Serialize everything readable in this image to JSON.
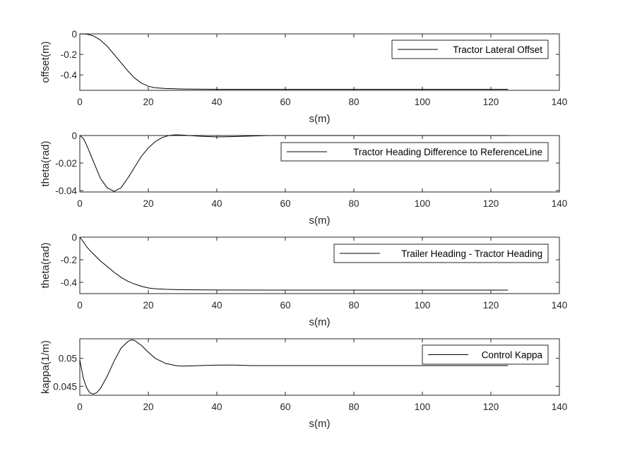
{
  "chart_data": [
    {
      "type": "line",
      "xlabel": "s(m)",
      "ylabel": "offset(m)",
      "xlim": [
        0,
        140
      ],
      "ylim": [
        -0.55,
        0
      ],
      "xticks": [
        0,
        20,
        40,
        60,
        80,
        100,
        120,
        140
      ],
      "yticks": [
        0,
        -0.2,
        -0.4
      ],
      "ytick_labels": [
        "0",
        "-0.2",
        "-0.4"
      ],
      "grid": false,
      "legend": {
        "entries": [
          "Tractor Lateral Offset"
        ],
        "placement": "top-right"
      },
      "series": [
        {
          "name": "Tractor Lateral Offset",
          "color": "#000000",
          "points": [
            [
              0,
              0
            ],
            [
              2,
              -0.002
            ],
            [
              4,
              -0.02
            ],
            [
              6,
              -0.06
            ],
            [
              8,
              -0.12
            ],
            [
              10,
              -0.2
            ],
            [
              12,
              -0.28
            ],
            [
              14,
              -0.36
            ],
            [
              16,
              -0.43
            ],
            [
              18,
              -0.48
            ],
            [
              20,
              -0.51
            ],
            [
              22,
              -0.525
            ],
            [
              25,
              -0.532
            ],
            [
              30,
              -0.537
            ],
            [
              40,
              -0.54
            ],
            [
              60,
              -0.54
            ],
            [
              80,
              -0.54
            ],
            [
              100,
              -0.54
            ],
            [
              125,
              -0.54
            ]
          ]
        }
      ]
    },
    {
      "type": "line",
      "xlabel": "s(m)",
      "ylabel": "theta(rad)",
      "xlim": [
        0,
        140
      ],
      "ylim": [
        -0.041,
        0
      ],
      "xticks": [
        0,
        20,
        40,
        60,
        80,
        100,
        120,
        140
      ],
      "yticks": [
        0,
        -0.02,
        -0.04
      ],
      "ytick_labels": [
        "0",
        "-0.02",
        "-0.04"
      ],
      "grid": false,
      "legend": {
        "entries": [
          "Tractor Heading Difference to ReferenceLine"
        ],
        "placement": "top-right"
      },
      "series": [
        {
          "name": "Tractor Heading Difference to ReferenceLine",
          "color": "#000000",
          "points": [
            [
              0,
              0
            ],
            [
              1,
              -0.002
            ],
            [
              2,
              -0.007
            ],
            [
              4,
              -0.019
            ],
            [
              6,
              -0.031
            ],
            [
              8,
              -0.038
            ],
            [
              10,
              -0.0405
            ],
            [
              12,
              -0.038
            ],
            [
              14,
              -0.031
            ],
            [
              16,
              -0.023
            ],
            [
              18,
              -0.015
            ],
            [
              20,
              -0.009
            ],
            [
              22,
              -0.0045
            ],
            [
              24,
              -0.0015
            ],
            [
              26,
              0
            ],
            [
              28,
              0.0005
            ],
            [
              30,
              0.0003
            ],
            [
              35,
              -0.0005
            ],
            [
              40,
              -0.001
            ],
            [
              45,
              -0.0008
            ],
            [
              50,
              -0.0004
            ],
            [
              55,
              0
            ],
            [
              60,
              0
            ],
            [
              80,
              0
            ],
            [
              100,
              0
            ],
            [
              125,
              0
            ]
          ]
        }
      ]
    },
    {
      "type": "line",
      "xlabel": "s(m)",
      "ylabel": "theta(rad)",
      "xlim": [
        0,
        140
      ],
      "ylim": [
        -0.5,
        0
      ],
      "xticks": [
        0,
        20,
        40,
        60,
        80,
        100,
        120,
        140
      ],
      "yticks": [
        0,
        -0.2,
        -0.4
      ],
      "ytick_labels": [
        "0",
        "-0.2",
        "-0.4"
      ],
      "grid": false,
      "legend": {
        "entries": [
          "Trailer Heading - Tractor Heading"
        ],
        "placement": "top-right"
      },
      "series": [
        {
          "name": "Trailer Heading - Tractor Heading",
          "color": "#000000",
          "points": [
            [
              0,
              0
            ],
            [
              1,
              -0.04
            ],
            [
              2,
              -0.085
            ],
            [
              3,
              -0.12
            ],
            [
              4,
              -0.15
            ],
            [
              6,
              -0.21
            ],
            [
              8,
              -0.26
            ],
            [
              10,
              -0.31
            ],
            [
              12,
              -0.355
            ],
            [
              14,
              -0.39
            ],
            [
              16,
              -0.415
            ],
            [
              18,
              -0.435
            ],
            [
              20,
              -0.45
            ],
            [
              22,
              -0.457
            ],
            [
              25,
              -0.462
            ],
            [
              30,
              -0.466
            ],
            [
              40,
              -0.468
            ],
            [
              60,
              -0.469
            ],
            [
              80,
              -0.469
            ],
            [
              100,
              -0.469
            ],
            [
              125,
              -0.469
            ]
          ]
        }
      ]
    },
    {
      "type": "line",
      "xlabel": "s(m)",
      "ylabel": "kappa(1/m)",
      "xlim": [
        0,
        140
      ],
      "ylim": [
        0.0434,
        0.0535
      ],
      "xticks": [
        0,
        20,
        40,
        60,
        80,
        100,
        120,
        140
      ],
      "yticks": [
        0.05,
        0.045
      ],
      "ytick_labels": [
        "0.05",
        "0.045"
      ],
      "grid": false,
      "legend": {
        "entries": [
          "Control Kappa"
        ],
        "placement": "top-right"
      },
      "series": [
        {
          "name": "Control Kappa",
          "color": "#000000",
          "points": [
            [
              0,
              0.0497
            ],
            [
              1,
              0.0465
            ],
            [
              2,
              0.0447
            ],
            [
              3,
              0.0438
            ],
            [
              4,
              0.0436
            ],
            [
              5,
              0.0439
            ],
            [
              6,
              0.0446
            ],
            [
              8,
              0.0468
            ],
            [
              10,
              0.0495
            ],
            [
              12,
              0.0518
            ],
            [
              14,
              0.053
            ],
            [
              15,
              0.0533
            ],
            [
              16,
              0.0532
            ],
            [
              18,
              0.0523
            ],
            [
              20,
              0.0511
            ],
            [
              22,
              0.05
            ],
            [
              25,
              0.0491
            ],
            [
              28,
              0.0487
            ],
            [
              30,
              0.0486
            ],
            [
              35,
              0.0487
            ],
            [
              40,
              0.0488
            ],
            [
              45,
              0.0488
            ],
            [
              50,
              0.0487
            ],
            [
              60,
              0.0487
            ],
            [
              80,
              0.0487
            ],
            [
              100,
              0.0487
            ],
            [
              125,
              0.0487
            ]
          ]
        }
      ]
    }
  ],
  "layout_note": ""
}
